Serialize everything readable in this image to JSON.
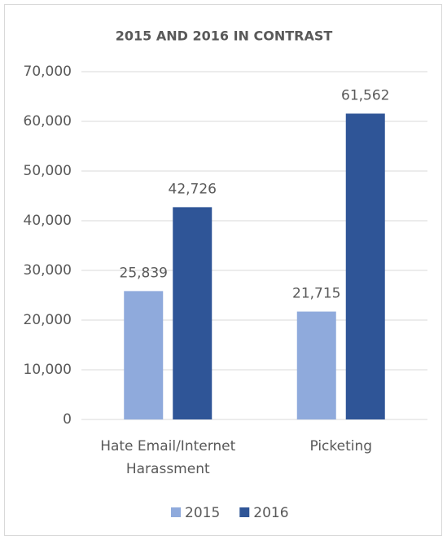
{
  "chart_data": {
    "type": "bar",
    "title": "2015 AND 2016 IN CONTRAST",
    "categories": [
      "Hate Email/Internet Harassment",
      "Picketing"
    ],
    "series": [
      {
        "name": "2015",
        "color": "#8faadc",
        "values": [
          25839,
          21715
        ],
        "value_labels": [
          "25,839",
          "21,715"
        ]
      },
      {
        "name": "2016",
        "color": "#2f5597",
        "values": [
          42726,
          61562
        ],
        "value_labels": [
          "42,726",
          "61,562"
        ]
      }
    ],
    "ylim": [
      0,
      70000
    ],
    "yticks": [
      0,
      {
        "value": 10000,
        "label": "10,000"
      },
      {
        "value": 20000,
        "label": "20,000"
      },
      {
        "value": 30000,
        "label": "30,000"
      },
      {
        "value": 40000,
        "label": "40,000"
      },
      {
        "value": 50000,
        "label": "50,000"
      },
      {
        "value": 60000,
        "label": "60,000"
      },
      {
        "value": 70000,
        "label": "70,000"
      }
    ],
    "grid": true,
    "legend": "bottom"
  }
}
